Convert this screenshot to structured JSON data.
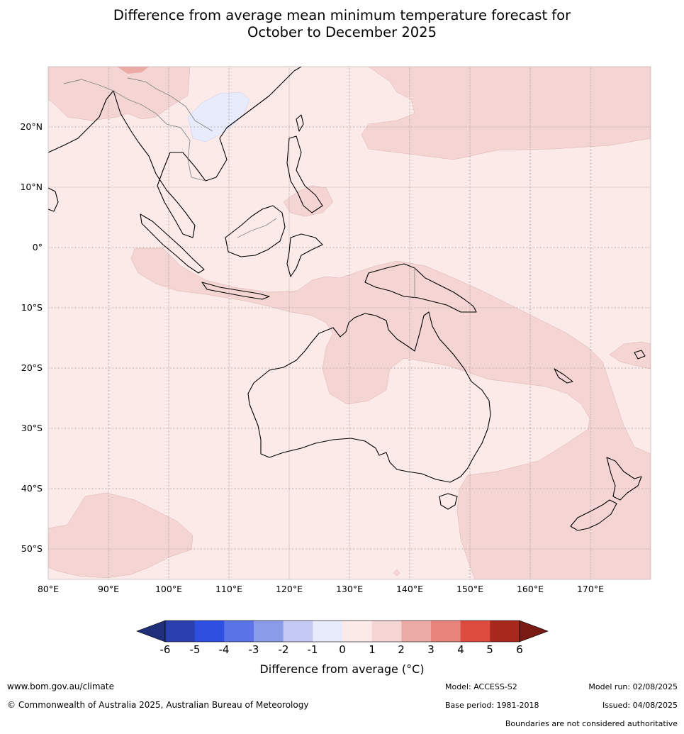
{
  "title_line1": "Difference from average mean minimum temperature forecast for",
  "title_line2": "October to December 2025",
  "lat_labels": [
    "20°N",
    "10°N",
    "0°",
    "10°S",
    "20°S",
    "30°S",
    "40°S",
    "50°S"
  ],
  "lon_labels": [
    "80°E",
    "90°E",
    "100°E",
    "110°E",
    "120°E",
    "130°E",
    "140°E",
    "150°E",
    "160°E",
    "170°E"
  ],
  "colorbar": {
    "ticks": [
      "-6",
      "-5",
      "-4",
      "-3",
      "-2",
      "-1",
      "0",
      "1",
      "2",
      "3",
      "4",
      "5",
      "6"
    ],
    "colors": [
      "#1f2f7a",
      "#2a3fb0",
      "#2f4fe0",
      "#5a73e6",
      "#8a9ce9",
      "#c3c9f2",
      "#e7ebfb",
      "#fbeae8",
      "#f5d5d3",
      "#ecaaa5",
      "#e8847c",
      "#dc4b3e",
      "#a8281e",
      "#7a1a14"
    ],
    "title": "Difference from average (°C)"
  },
  "footer": {
    "website": "www.bom.gov.au/climate",
    "copyright": "© Commonwealth of Australia 2025, Australian Bureau of Meteorology",
    "model": "Model: ACCESS-S2",
    "base_period": "Base period: 1981-2018",
    "model_run": "Model run: 02/08/2025",
    "issued": "Issued: 04/08/2025",
    "disclaimer": "Boundaries are not considered authoritative"
  }
}
